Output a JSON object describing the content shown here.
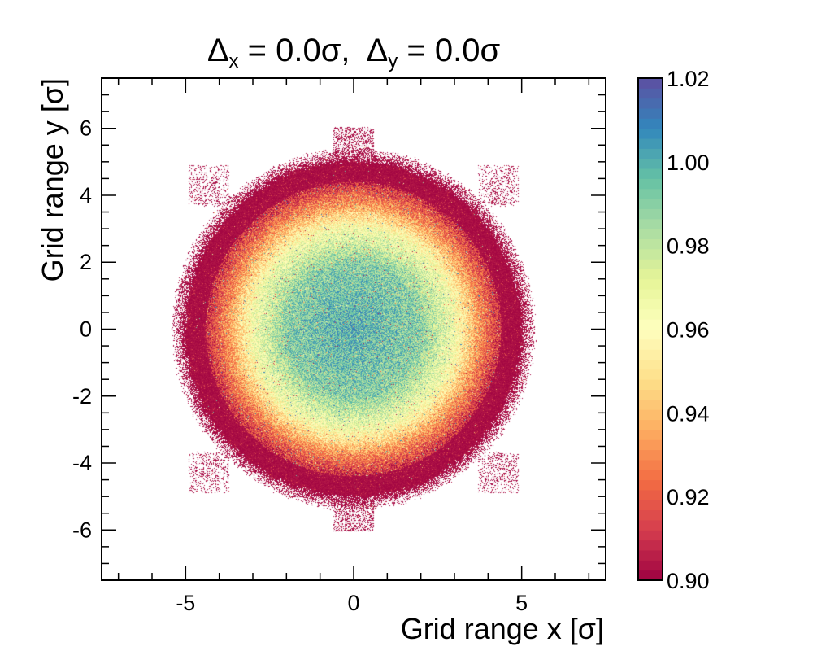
{
  "chart_data": {
    "type": "heatmap",
    "title_parts": {
      "dx_symbol": "Δ",
      "dx_sub": "x",
      "dx_value": " = 0.0σ,  ",
      "dy_symbol": "Δ",
      "dy_sub": "y",
      "dy_value": " = 0.0σ"
    },
    "xlabel": "Grid range x [σ]",
    "ylabel": "Grid range y [σ]",
    "xlim": [
      -7.5,
      7.5
    ],
    "ylim": [
      -7.5,
      7.5
    ],
    "x_ticks": [
      -5,
      0,
      5
    ],
    "x_tick_labels": [
      "-5",
      "0",
      "5"
    ],
    "y_ticks": [
      -6,
      -4,
      -2,
      0,
      2,
      4,
      6
    ],
    "y_tick_labels": [
      "-6",
      "-4",
      "-2",
      "0",
      "2",
      "4",
      "6"
    ],
    "colorbar": {
      "zlim": [
        0.9,
        1.02
      ],
      "ticks": [
        0.9,
        0.92,
        0.94,
        0.96,
        0.98,
        1.0,
        1.02
      ],
      "tick_labels": [
        "0.90",
        "0.92",
        "0.94",
        "0.96",
        "0.98",
        "1.00",
        "1.02"
      ],
      "colormap": [
        "#9e0142",
        "#d53e4f",
        "#f46d43",
        "#fdae61",
        "#fee08b",
        "#ffffbf",
        "#e6f598",
        "#abdda4",
        "#66c2a5",
        "#3288bd",
        "#5e4fa2"
      ],
      "levels": 50
    },
    "distribution": {
      "shape": "radial disk",
      "outer_radius": 5.2,
      "center_value": 1.0,
      "value_at_radius": [
        [
          0,
          1.0
        ],
        [
          2,
          0.99
        ],
        [
          3,
          0.965
        ],
        [
          3.8,
          0.93
        ],
        [
          4.5,
          0.905
        ],
        [
          5.2,
          0.9
        ]
      ],
      "noise": "high, with scattered out-of-range pixels",
      "extra_patches": "sparse rectangular patches near (0, ±6) and (±4.3, ±4.3)"
    }
  }
}
